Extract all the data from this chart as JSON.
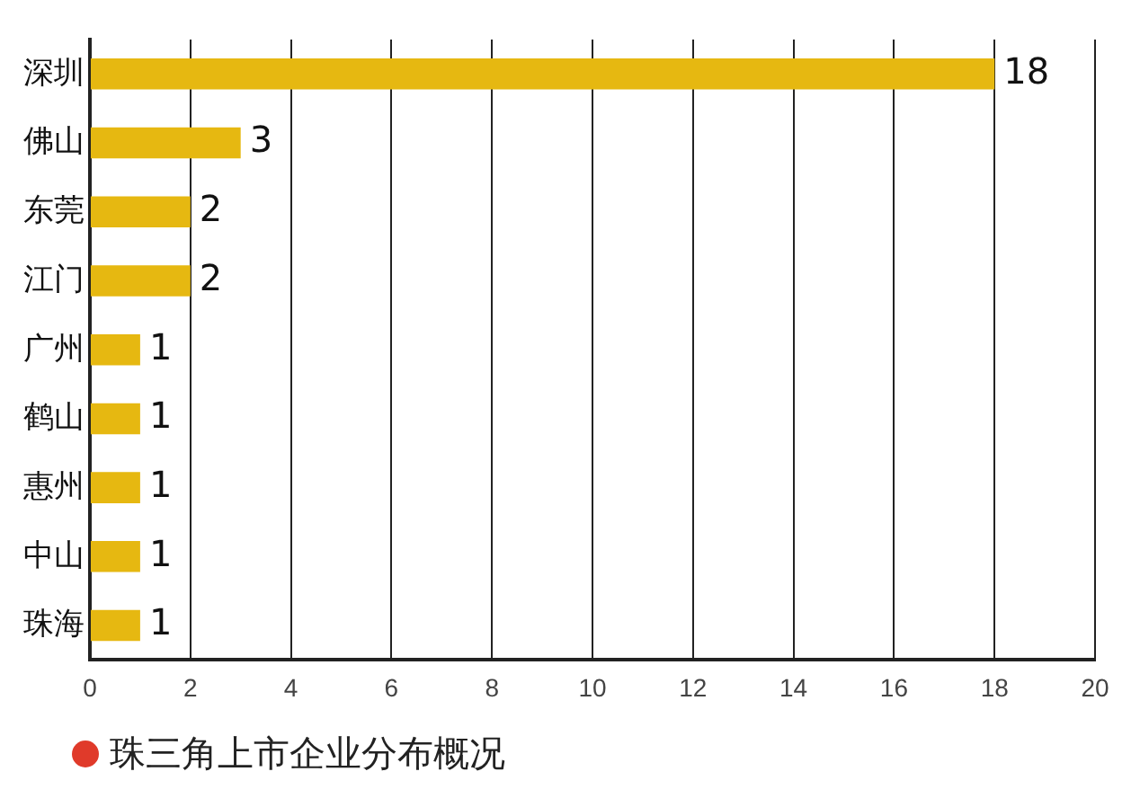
{
  "chart_data": {
    "type": "bar",
    "orientation": "horizontal",
    "title": "珠三角上市企业分布概况",
    "categories": [
      "深圳",
      "佛山",
      "东莞",
      "江门",
      "广州",
      "鹤山",
      "惠州",
      "中山",
      "珠海"
    ],
    "values": [
      18,
      3,
      2,
      2,
      1,
      1,
      1,
      1,
      1
    ],
    "color": "#e6b811",
    "xlim": [
      0,
      20
    ],
    "xticks": [
      0,
      2,
      4,
      6,
      8,
      10,
      12,
      14,
      16,
      18,
      20
    ],
    "grid": "x",
    "data_labels": true
  }
}
